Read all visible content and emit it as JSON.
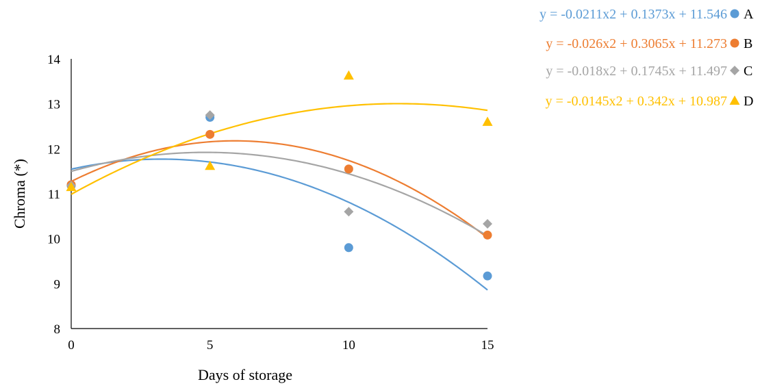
{
  "chart_data": {
    "type": "scatter",
    "xlabel": "Days of storage",
    "ylabel": "Chroma (*)",
    "xlim": [
      0,
      15
    ],
    "ylim": [
      8,
      14
    ],
    "x_ticks": [
      "0",
      "5",
      "10",
      "15"
    ],
    "y_ticks": [
      "8",
      "9",
      "10",
      "11",
      "12",
      "13",
      "14"
    ],
    "x": [
      0,
      5,
      10,
      15
    ],
    "grid": false,
    "legend_position": "top-right",
    "series": [
      {
        "name": "A",
        "color": "#5B9BD5",
        "marker": "circle",
        "values": [
          11.18,
          12.7,
          9.8,
          9.17
        ],
        "trendline": {
          "type": "polynomial",
          "a": -0.0211,
          "b": 0.1373,
          "c": 11.546
        },
        "equation": "y = -0.0211x2 + 0.1373x + 11.546"
      },
      {
        "name": "B",
        "color": "#ED7D31",
        "marker": "circle",
        "values": [
          11.2,
          12.32,
          11.55,
          10.08
        ],
        "trendline": {
          "type": "polynomial",
          "a": -0.026,
          "b": 0.3065,
          "c": 11.273
        },
        "equation": "y = -0.026x2 + 0.3065x + 11.273"
      },
      {
        "name": "C",
        "color": "#A5A5A5",
        "marker": "diamond",
        "values": [
          11.18,
          12.75,
          10.6,
          10.33
        ],
        "trendline": {
          "type": "polynomial",
          "a": -0.018,
          "b": 0.1745,
          "c": 11.497
        },
        "equation": "y = -0.018x2 + 0.1745x + 11.497"
      },
      {
        "name": "D",
        "color": "#FFC000",
        "marker": "triangle",
        "values": [
          11.15,
          11.62,
          13.63,
          12.6
        ],
        "trendline": {
          "type": "polynomial",
          "a": -0.0145,
          "b": 0.342,
          "c": 10.987
        },
        "equation": "y = -0.0145x2 + 0.342x + 10.987"
      }
    ]
  }
}
